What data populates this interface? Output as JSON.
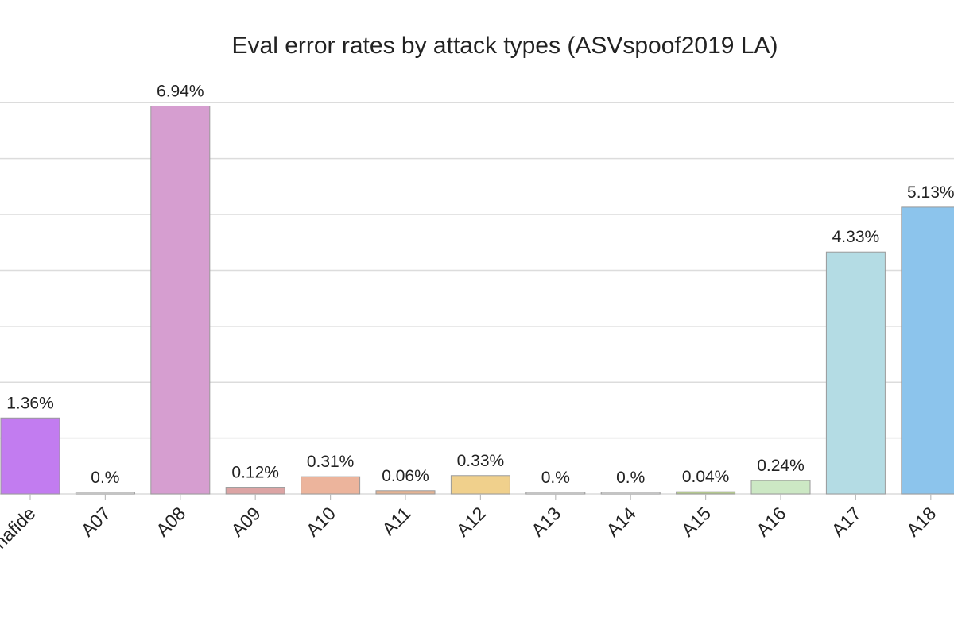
{
  "chart_data": {
    "type": "bar",
    "title": "Eval error rates by attack types (ASVspoof2019 LA)",
    "xlabel": "",
    "ylabel": "",
    "categories": [
      "bonafide",
      "A07",
      "A08",
      "A09",
      "A10",
      "A11",
      "A12",
      "A13",
      "A14",
      "A15",
      "A16",
      "A17",
      "A18"
    ],
    "values": [
      1.36,
      0.0,
      6.94,
      0.12,
      0.31,
      0.06,
      0.33,
      0.0,
      0.0,
      0.04,
      0.24,
      4.33,
      5.13
    ],
    "value_labels": [
      "1.36%",
      "0.%",
      "6.94%",
      "0.12%",
      "0.31%",
      "0.06%",
      "0.33%",
      "0.%",
      "0.%",
      "0.04%",
      "0.24%",
      "4.33%",
      "5.13%"
    ],
    "bar_colors": [
      "#c27cf0",
      "#eeeeee",
      "#d69ed0",
      "#dca4a4",
      "#ecb49c",
      "#e4b494",
      "#f0d08c",
      "#eeeeee",
      "#eeeeee",
      "#b4c890",
      "#cce8c4",
      "#b4dce4",
      "#8cc4ec"
    ],
    "ylim": [
      0,
      7.7
    ],
    "y_gridlines": [
      0,
      1,
      2,
      3,
      4,
      5,
      6,
      7
    ],
    "grid": true,
    "legend": "none"
  }
}
